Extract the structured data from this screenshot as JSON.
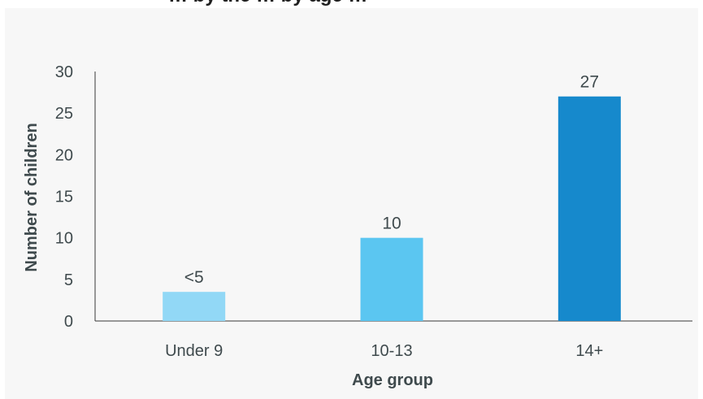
{
  "chart_data": {
    "type": "bar",
    "title": "… by the … by age …",
    "xlabel": "Age group",
    "ylabel": "Number of children",
    "categories": [
      "Under 9",
      "10-13",
      "14+"
    ],
    "values": [
      3.5,
      10,
      27
    ],
    "data_labels": [
      "<5",
      "10",
      "27"
    ],
    "bar_colors": [
      "#92d8f6",
      "#5bc6f1",
      "#1689cc"
    ],
    "ylim": [
      0,
      30
    ],
    "yticks": [
      "0",
      "5",
      "10",
      "15",
      "20",
      "25",
      "30"
    ],
    "grid": false,
    "legend": "none"
  }
}
